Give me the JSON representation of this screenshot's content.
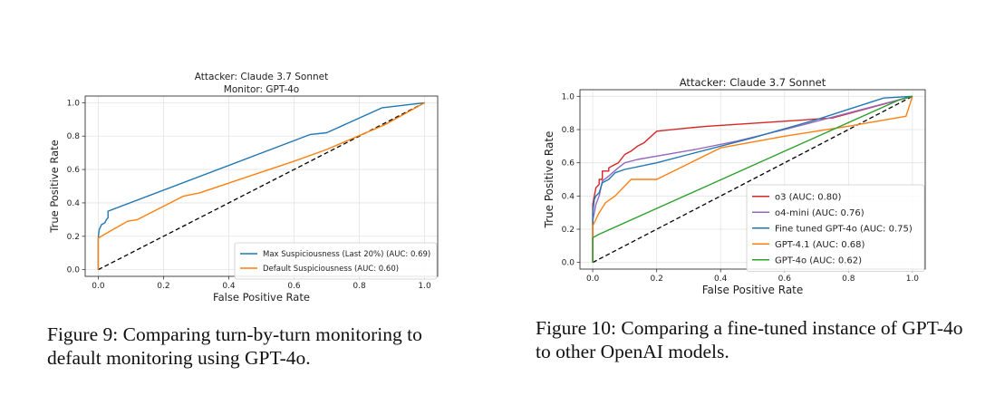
{
  "chart_data": [
    {
      "type": "line",
      "title": "Attacker: Claude 3.7 Sonnet",
      "subtitle": "Monitor: GPT-4o",
      "xlabel": "False Positive Rate",
      "ylabel": "True Positive Rate",
      "xlim": [
        -0.04,
        1.04
      ],
      "ylim": [
        -0.04,
        1.04
      ],
      "xticks": [
        0.0,
        0.2,
        0.4,
        0.6,
        0.8,
        1.0
      ],
      "yticks": [
        0.0,
        0.2,
        0.4,
        0.6,
        0.8,
        1.0
      ],
      "grid": true,
      "legend_position": "lower-right",
      "series": [
        {
          "name": "Max Suspiciousness (Last 20%) (AUC: 0.69)",
          "color": "#1f77b4",
          "x": [
            0.0,
            0.0,
            0.003,
            0.01,
            0.02,
            0.025,
            0.03,
            0.03,
            0.65,
            0.7,
            0.87,
            1.0
          ],
          "y": [
            0.0,
            0.19,
            0.24,
            0.27,
            0.28,
            0.3,
            0.31,
            0.35,
            0.81,
            0.82,
            0.97,
            1.0
          ]
        },
        {
          "name": "Default Suspiciousness (AUC: 0.60)",
          "color": "#ff7f0e",
          "x": [
            0.0,
            0.0,
            0.09,
            0.12,
            0.26,
            0.31,
            0.6,
            0.7,
            0.88,
            1.0
          ],
          "y": [
            0.0,
            0.19,
            0.29,
            0.3,
            0.44,
            0.46,
            0.65,
            0.72,
            0.87,
            1.0
          ]
        }
      ]
    },
    {
      "type": "line",
      "title": "Attacker: Claude 3.7 Sonnet",
      "xlabel": "False Positive Rate",
      "ylabel": "True Positive Rate",
      "xlim": [
        -0.04,
        1.04
      ],
      "ylim": [
        -0.04,
        1.04
      ],
      "xticks": [
        0.0,
        0.2,
        0.4,
        0.6,
        0.8,
        1.0
      ],
      "yticks": [
        0.0,
        0.2,
        0.4,
        0.6,
        0.8,
        1.0
      ],
      "grid": true,
      "legend_position": "center-right",
      "series": [
        {
          "name": "o3 (AUC: 0.80)",
          "color": "#d62728",
          "x": [
            0.0,
            0.0,
            0.01,
            0.02,
            0.02,
            0.03,
            0.03,
            0.05,
            0.05,
            0.07,
            0.08,
            0.1,
            0.12,
            0.14,
            0.16,
            0.2,
            0.3,
            0.36,
            0.6,
            0.75,
            1.0
          ],
          "y": [
            0.0,
            0.35,
            0.45,
            0.47,
            0.5,
            0.5,
            0.55,
            0.55,
            0.57,
            0.59,
            0.6,
            0.65,
            0.67,
            0.7,
            0.72,
            0.79,
            0.81,
            0.82,
            0.85,
            0.87,
            1.0
          ]
        },
        {
          "name": "o4-mini (AUC: 0.76)",
          "color": "#9467bd",
          "x": [
            0.0,
            0.0,
            0.01,
            0.02,
            0.03,
            0.05,
            0.08,
            0.1,
            0.14,
            0.2,
            0.32,
            0.45,
            0.6,
            0.8,
            1.0
          ],
          "y": [
            0.0,
            0.25,
            0.35,
            0.4,
            0.49,
            0.52,
            0.57,
            0.6,
            0.62,
            0.64,
            0.68,
            0.73,
            0.8,
            0.9,
            1.0
          ]
        },
        {
          "name": "Fine tuned GPT-4o (AUC: 0.75)",
          "color": "#1f77b4",
          "x": [
            0.0,
            0.0,
            0.005,
            0.01,
            0.02,
            0.03,
            0.05,
            0.07,
            0.1,
            0.2,
            0.3,
            0.5,
            0.7,
            0.91,
            1.0
          ],
          "y": [
            0.0,
            0.3,
            0.38,
            0.4,
            0.42,
            0.48,
            0.5,
            0.54,
            0.56,
            0.6,
            0.65,
            0.75,
            0.86,
            0.99,
            1.0
          ]
        },
        {
          "name": "GPT-4.1 (AUC: 0.68)",
          "color": "#ff7f0e",
          "x": [
            0.0,
            0.0,
            0.01,
            0.02,
            0.04,
            0.07,
            0.12,
            0.2,
            0.4,
            0.6,
            0.8,
            0.98,
            1.0
          ],
          "y": [
            0.0,
            0.22,
            0.26,
            0.3,
            0.36,
            0.4,
            0.5,
            0.5,
            0.69,
            0.76,
            0.82,
            0.88,
            1.0
          ]
        },
        {
          "name": "GPT-4o (AUC: 0.62)",
          "color": "#2ca02c",
          "x": [
            0.0,
            0.0,
            0.02,
            0.96,
            1.0
          ],
          "y": [
            0.0,
            0.15,
            0.17,
            0.98,
            1.0
          ]
        }
      ]
    }
  ],
  "captions": {
    "fig9": "Figure 9: Comparing turn-by-turn monitoring to default monitoring using GPT-4o.",
    "fig10": "Figure 10: Comparing a fine-tuned instance of GPT-4o to other OpenAI models."
  }
}
